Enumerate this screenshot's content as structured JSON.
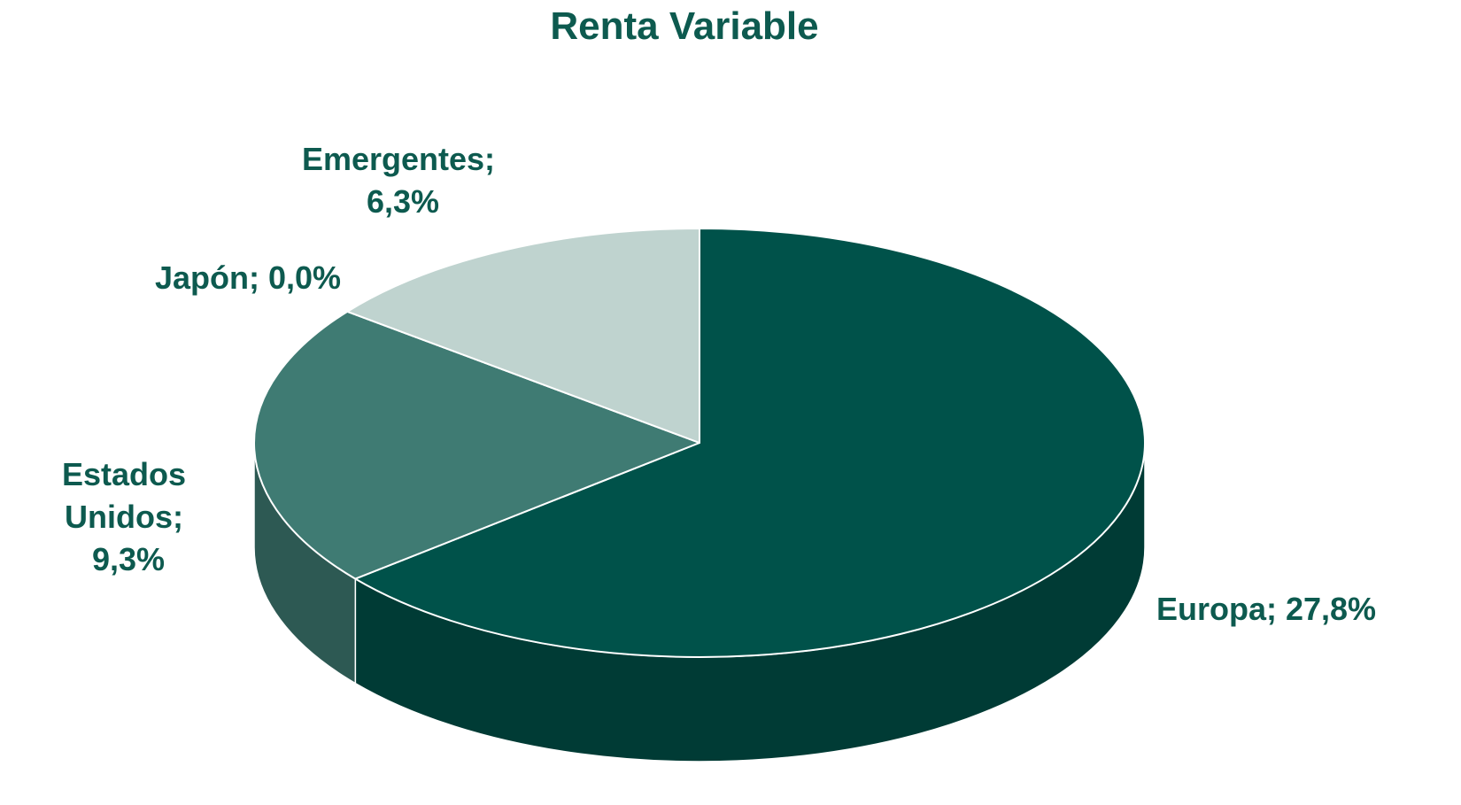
{
  "chart_data": {
    "type": "pie",
    "title": "Renta Variable",
    "categories": [
      "Europa",
      "Estados Unidos",
      "Japón",
      "Emergentes"
    ],
    "values": [
      27.8,
      9.3,
      0.0,
      6.3
    ],
    "value_labels": [
      "27,8%",
      "9,3%",
      "0,0%",
      "6,3%"
    ],
    "label_separator": ";",
    "colors": [
      "#00524a",
      "#3f7b73",
      "#1e5a52",
      "#bfd3cf"
    ]
  }
}
